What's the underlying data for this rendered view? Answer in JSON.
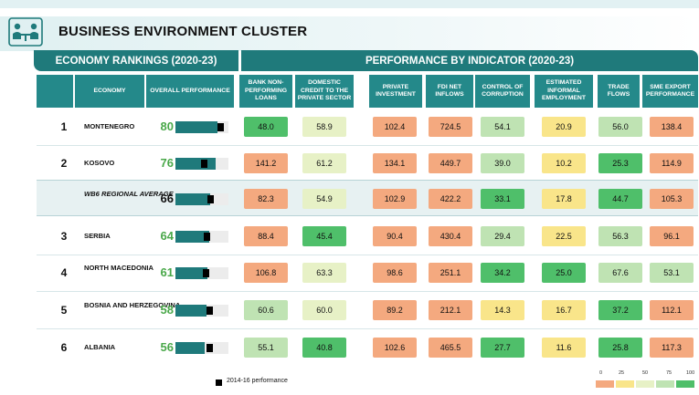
{
  "title": "BUSINESS ENVIRONMENT CLUSTER",
  "sections": {
    "left": "ECONOMY RANKINGS (2020-23)",
    "right": "PERFORMANCE BY INDICATOR (2020-23)"
  },
  "columns": {
    "economy": "ECONOMY",
    "overall": "OVERALL PERFORMANCE",
    "indicators": [
      "BANK NON-PERFORMING LOANS",
      "DOMESTIC CREDIT TO THE PRIVATE SECTOR",
      "PRIVATE INVESTMENT",
      "FDI NET INFLOWS",
      "CONTROL OF CORRUPTION",
      "ESTIMATED INFORMAL EMPLOYMENT",
      "TRADE FLOWS",
      "SME EXPORT PERFORMANCE"
    ]
  },
  "legend": {
    "marker_label": "2014-16 performance",
    "scale_labels": [
      "0",
      "25",
      "50",
      "75",
      "100"
    ]
  },
  "colors": {
    "teal": "#1f7a7b",
    "score_green": "#4aa84a",
    "scale": [
      "#f4a97f",
      "#f9e58a",
      "#e7f1c6",
      "#bfe3b3",
      "#4fbf6a"
    ]
  },
  "chart_data": {
    "type": "table",
    "rows": [
      {
        "rank": "1",
        "economy": "MONTENEGRO",
        "overall": 80,
        "baseline": 86,
        "values": [
          "48.0",
          "58.9",
          "102.4",
          "724.5",
          "54.1",
          "20.9",
          "56.0",
          "138.4"
        ],
        "levels": [
          5,
          3,
          1,
          1,
          4,
          2,
          4,
          1
        ]
      },
      {
        "rank": "2",
        "economy": "KOSOVO",
        "overall": 76,
        "baseline": 55,
        "values": [
          "141.2",
          "61.2",
          "134.1",
          "449.7",
          "39.0",
          "10.2",
          "25.3",
          "114.9"
        ],
        "levels": [
          1,
          3,
          1,
          1,
          4,
          2,
          5,
          1
        ]
      },
      {
        "rank": "",
        "economy": "WB6 REGIONAL AVERAGE",
        "italic": true,
        "overall": 66,
        "baseline": 67,
        "values": [
          "82.3",
          "54.9",
          "102.9",
          "422.2",
          "33.1",
          "17.8",
          "44.7",
          "105.3"
        ],
        "levels": [
          1,
          3,
          1,
          1,
          5,
          2,
          5,
          1
        ]
      },
      {
        "rank": "3",
        "economy": "SERBIA",
        "overall": 64,
        "baseline": 60,
        "values": [
          "88.4",
          "45.4",
          "90.4",
          "430.4",
          "29.4",
          "22.5",
          "56.3",
          "96.1"
        ],
        "levels": [
          1,
          5,
          1,
          1,
          4,
          2,
          4,
          1
        ]
      },
      {
        "rank": "4",
        "economy": "NORTH MACEDONIA",
        "overall": 61,
        "baseline": 57,
        "values": [
          "106.8",
          "63.3",
          "98.6",
          "251.1",
          "34.2",
          "25.0",
          "67.6",
          "53.1"
        ],
        "levels": [
          1,
          3,
          1,
          1,
          5,
          5,
          4,
          4
        ]
      },
      {
        "rank": "5",
        "economy": "BOSNIA AND HERZEGOVINA",
        "overall": 58,
        "baseline": 65,
        "values": [
          "60.6",
          "60.0",
          "89.2",
          "212.1",
          "14.3",
          "16.7",
          "37.2",
          "112.1"
        ],
        "levels": [
          4,
          3,
          1,
          1,
          2,
          2,
          5,
          1
        ]
      },
      {
        "rank": "6",
        "economy": "ALBANIA",
        "overall": 56,
        "baseline": 65,
        "values": [
          "55.1",
          "40.8",
          "102.6",
          "465.5",
          "27.7",
          "11.6",
          "25.8",
          "117.3"
        ],
        "levels": [
          4,
          5,
          1,
          1,
          5,
          2,
          5,
          1
        ]
      }
    ]
  }
}
